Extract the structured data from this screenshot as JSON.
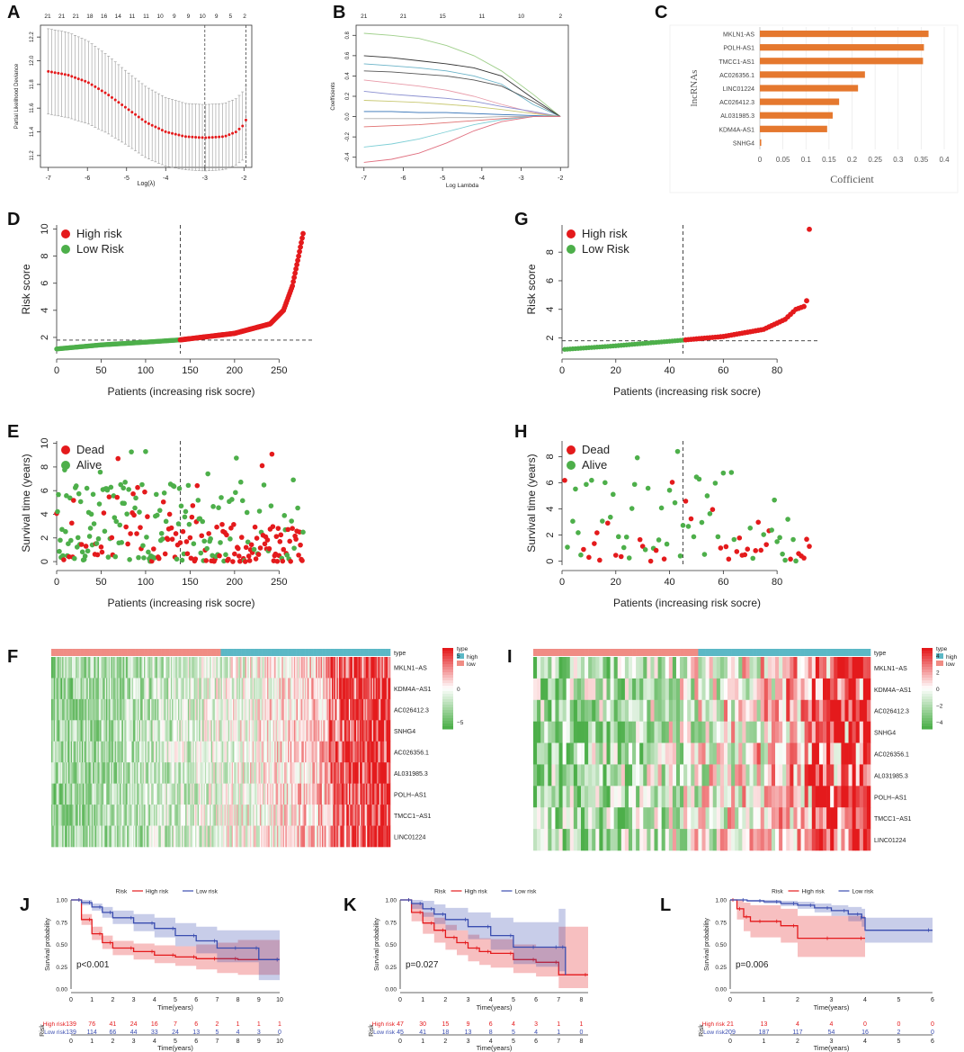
{
  "panel_letters": [
    "A",
    "B",
    "C",
    "D",
    "E",
    "F",
    "G",
    "H",
    "I",
    "J",
    "K",
    "L"
  ],
  "colors": {
    "high": "#e41a1c",
    "low": "#4daf4a",
    "dead": "#e41a1c",
    "alive": "#4daf4a",
    "km_high": "#e41a1c",
    "km_low": "#3a4db0",
    "heat_high": "#e41a1c",
    "heat_mid": "#ffffff",
    "heat_low": "#4daf4a",
    "bar": "#e5782e",
    "type_high": "#5bb8c6",
    "type_low": "#f08c84"
  },
  "chart_data": [
    {
      "panel": "A",
      "type": "line",
      "xlabel": "Log(λ)",
      "ylabel": "Partial Likelihood Deviance",
      "xlim": [
        -7.2,
        -1.8
      ],
      "ylim": [
        11.1,
        12.3
      ],
      "xticks": [
        "-7",
        "-6",
        "-5",
        "-4",
        "-3",
        "-2"
      ],
      "yticks": [
        "11.2",
        "11.4",
        "11.6",
        "11.8",
        "12.0",
        "12.2"
      ],
      "top_ticks": [
        "21",
        "21",
        "21",
        "18",
        "16",
        "14",
        "11",
        "11",
        "10",
        "9",
        "9",
        "10",
        "9",
        "5",
        "2"
      ],
      "vlines": [
        -3.0,
        -1.95
      ],
      "curve": {
        "x": [
          -7.0,
          -6.5,
          -6.0,
          -5.5,
          -5.0,
          -4.5,
          -4.0,
          -3.5,
          -3.0,
          -2.5,
          -2.2,
          -2.0,
          -1.95
        ],
        "y": [
          11.91,
          11.88,
          11.82,
          11.72,
          11.6,
          11.48,
          11.4,
          11.36,
          11.35,
          11.36,
          11.4,
          11.46,
          11.5
        ],
        "err": [
          0.36,
          0.36,
          0.35,
          0.33,
          0.31,
          0.3,
          0.29,
          0.28,
          0.28,
          0.28,
          0.28,
          0.29,
          0.29
        ]
      }
    },
    {
      "panel": "B",
      "type": "line",
      "xlabel": "Log Lambda",
      "ylabel": "Coefficients",
      "xlim": [
        -7.2,
        -1.8
      ],
      "ylim": [
        -0.5,
        0.9
      ],
      "xticks": [
        "-7",
        "-6",
        "-5",
        "-4",
        "-3",
        "-2"
      ],
      "yticks": [
        "-0.4",
        "-0.2",
        "0.0",
        "0.2",
        "0.4",
        "0.6",
        "0.8"
      ],
      "top_ticks": [
        "21",
        "21",
        "15",
        "11",
        "10",
        "2"
      ],
      "series": [
        {
          "name": "s1",
          "color": "#9fcf8a",
          "values": [
            0.82,
            0.8,
            0.77,
            0.7,
            0.6,
            0.45,
            0.22,
            0.0
          ]
        },
        {
          "name": "s2",
          "color": "#333333",
          "values": [
            0.6,
            0.58,
            0.55,
            0.52,
            0.48,
            0.4,
            0.18,
            0.0
          ]
        },
        {
          "name": "s3",
          "color": "#6bb3c8",
          "values": [
            0.52,
            0.5,
            0.48,
            0.45,
            0.4,
            0.32,
            0.12,
            0.0
          ]
        },
        {
          "name": "s4",
          "color": "#555555",
          "values": [
            0.45,
            0.44,
            0.42,
            0.4,
            0.36,
            0.3,
            0.15,
            0.0
          ]
        },
        {
          "name": "s5",
          "color": "#e89aa8",
          "values": [
            0.36,
            0.33,
            0.3,
            0.26,
            0.2,
            0.12,
            0.04,
            0.0
          ]
        },
        {
          "name": "s6",
          "color": "#8a8fd0",
          "values": [
            0.25,
            0.22,
            0.2,
            0.18,
            0.15,
            0.1,
            0.05,
            0.0
          ]
        },
        {
          "name": "s7",
          "color": "#c8c872",
          "values": [
            0.16,
            0.15,
            0.14,
            0.12,
            0.1,
            0.07,
            0.03,
            0.0
          ]
        },
        {
          "name": "s8",
          "color": "#2f6fb5",
          "values": [
            0.05,
            0.05,
            0.04,
            0.04,
            0.03,
            0.02,
            0.01,
            0.0
          ]
        },
        {
          "name": "s9",
          "color": "#aaaaaa",
          "values": [
            -0.02,
            -0.02,
            -0.02,
            -0.01,
            -0.01,
            0.0,
            0.0,
            0.0
          ]
        },
        {
          "name": "s10",
          "color": "#e07070",
          "values": [
            -0.1,
            -0.09,
            -0.08,
            -0.06,
            -0.04,
            -0.02,
            0.0,
            0.0
          ]
        },
        {
          "name": "s11",
          "color": "#7fcfd6",
          "values": [
            -0.3,
            -0.27,
            -0.22,
            -0.15,
            -0.08,
            -0.03,
            0.0,
            0.0
          ]
        },
        {
          "name": "s12",
          "color": "#e07080",
          "values": [
            -0.45,
            -0.42,
            -0.36,
            -0.26,
            -0.14,
            -0.05,
            0.0,
            0.0
          ]
        }
      ],
      "x": [
        -7.0,
        -6.3,
        -5.6,
        -4.9,
        -4.2,
        -3.5,
        -2.7,
        -2.0
      ]
    },
    {
      "panel": "C",
      "type": "bar",
      "orientation": "horizontal",
      "ylabel": "lncRNAs",
      "xlabel": "Cofficient",
      "xlim": [
        0,
        0.4
      ],
      "xticks": [
        "0",
        "0.05",
        "0.1",
        "0.15",
        "0.2",
        "0.25",
        "0.3",
        "0.35",
        "0.4"
      ],
      "categories": [
        "MKLN1-AS",
        "POLH-AS1",
        "TMCC1-AS1",
        "AC026356.1",
        "LINC01224",
        "AC026412.3",
        "AL031985.3",
        "KDM4A-AS1",
        "SNHG4"
      ],
      "values": [
        0.366,
        0.356,
        0.354,
        0.228,
        0.213,
        0.172,
        0.158,
        0.146,
        0.003
      ]
    },
    {
      "panel": "D",
      "type": "scatter",
      "xlabel": "Patients (increasing risk socre)",
      "ylabel": "Risk score",
      "n": 278,
      "cutoff_index": 139,
      "cutoff_value": 1.8,
      "xlim": [
        0,
        280
      ],
      "ylim": [
        0.8,
        10.3
      ],
      "xticks": [
        "0",
        "50",
        "100",
        "150",
        "200",
        "250"
      ],
      "yticks": [
        "2",
        "4",
        "6",
        "8",
        "10"
      ],
      "legend": [
        "High risk",
        "Low Risk"
      ],
      "curve_x": [
        0,
        50,
        100,
        139,
        200,
        240,
        255,
        265,
        272,
        278
      ],
      "curve_y": [
        1.15,
        1.45,
        1.65,
        1.82,
        2.3,
        3.0,
        4.0,
        5.8,
        8.0,
        10.0
      ]
    },
    {
      "panel": "E",
      "type": "scatter",
      "xlabel": "Patients (increasing risk socre)",
      "ylabel": "Survival time (years)",
      "n": 278,
      "cutoff_index": 139,
      "xlim": [
        0,
        280
      ],
      "ylim": [
        -0.3,
        10.2
      ],
      "xticks": [
        "0",
        "50",
        "100",
        "150",
        "200",
        "250"
      ],
      "yticks": [
        "0",
        "2",
        "4",
        "6",
        "8",
        "10"
      ],
      "legend": [
        "Dead",
        "Alive"
      ]
    },
    {
      "panel": "F",
      "type": "heatmap",
      "genes": [
        "MKLN1−AS",
        "KDM4A−AS1",
        "AC026412.3",
        "SNHG4",
        "AC026356.1",
        "AL031985.3",
        "POLH−AS1",
        "TMCC1−AS1",
        "LINC01224"
      ],
      "columns": 278,
      "split": 139,
      "legend_type_title": "type",
      "legend_type": [
        "high",
        "low"
      ],
      "colorbar_ticks": [
        "5",
        "0",
        "−5"
      ],
      "type_label": "type"
    },
    {
      "panel": "G",
      "type": "scatter",
      "xlabel": "Patients (increasing risk socre)",
      "ylabel": "Risk score",
      "n": 92,
      "cutoff_index": 45,
      "cutoff_value": 1.8,
      "xlim": [
        0,
        93
      ],
      "ylim": [
        0.9,
        9.9
      ],
      "xticks": [
        "0",
        "20",
        "40",
        "60",
        "80"
      ],
      "yticks": [
        "2",
        "4",
        "6",
        "8"
      ],
      "legend": [
        "High risk",
        "Low Risk"
      ],
      "curve_x": [
        1,
        20,
        45,
        60,
        75,
        83,
        87,
        90,
        91,
        92
      ],
      "curve_y": [
        1.2,
        1.45,
        1.85,
        2.1,
        2.6,
        3.3,
        4.0,
        4.2,
        4.6,
        9.6
      ]
    },
    {
      "panel": "H",
      "type": "scatter",
      "xlabel": "Patients (increasing risk socre)",
      "ylabel": "Survival time (years)",
      "n": 92,
      "cutoff_index": 45,
      "xlim": [
        0,
        93
      ],
      "ylim": [
        -0.3,
        9.2
      ],
      "xticks": [
        "0",
        "20",
        "40",
        "60",
        "80"
      ],
      "yticks": [
        "0",
        "2",
        "4",
        "6",
        "8"
      ],
      "legend": [
        "Dead",
        "Alive"
      ]
    },
    {
      "panel": "I",
      "type": "heatmap",
      "genes": [
        "MKLN1−AS",
        "KDM4A−AS1",
        "AC026412.3",
        "SNHG4",
        "AC026356.1",
        "AL031985.3",
        "POLH−AS1",
        "TMCC1−AS1",
        "LINC01224"
      ],
      "columns": 92,
      "split": 45,
      "legend_type_title": "type",
      "legend_type": [
        "high",
        "low"
      ],
      "colorbar_ticks": [
        "4",
        "2",
        "0",
        "−2",
        "−4"
      ],
      "type_label": "type"
    },
    {
      "panel": "J",
      "type": "line",
      "title_label": "Risk",
      "legend": [
        "High risk",
        "Low risk"
      ],
      "xlabel": "Time(years)",
      "ylabel": "Survival probability",
      "xlim": [
        0,
        10
      ],
      "ylim": [
        0,
        1
      ],
      "xticks": [
        "0",
        "1",
        "2",
        "3",
        "4",
        "5",
        "6",
        "7",
        "8",
        "9",
        "10"
      ],
      "yticks": [
        "0.00",
        "0.25",
        "0.50",
        "0.75",
        "1.00"
      ],
      "pvalue": "p<0.001",
      "series": [
        {
          "name": "High risk",
          "t": [
            0,
            0.5,
            1,
            1.5,
            2,
            3,
            4,
            5,
            6,
            7,
            8,
            10
          ],
          "s": [
            1.0,
            0.78,
            0.62,
            0.52,
            0.46,
            0.42,
            0.38,
            0.36,
            0.34,
            0.34,
            0.33,
            0.33
          ],
          "lo": [
            1.0,
            0.72,
            0.55,
            0.45,
            0.38,
            0.33,
            0.29,
            0.26,
            0.22,
            0.18,
            0.16,
            0.16
          ],
          "hi": [
            1.0,
            0.84,
            0.7,
            0.6,
            0.54,
            0.51,
            0.49,
            0.48,
            0.5,
            0.52,
            0.55,
            0.55
          ]
        },
        {
          "name": "Low risk",
          "t": [
            0,
            0.5,
            1,
            1.5,
            2,
            3,
            4,
            5,
            6,
            7,
            8,
            9,
            10
          ],
          "s": [
            1.0,
            0.97,
            0.92,
            0.86,
            0.8,
            0.74,
            0.68,
            0.6,
            0.54,
            0.46,
            0.46,
            0.33,
            0.33
          ],
          "lo": [
            1.0,
            0.94,
            0.88,
            0.8,
            0.73,
            0.65,
            0.58,
            0.48,
            0.4,
            0.3,
            0.3,
            0.1,
            0.1
          ],
          "hi": [
            1.0,
            1.0,
            0.96,
            0.92,
            0.88,
            0.84,
            0.8,
            0.74,
            0.7,
            0.66,
            0.66,
            0.66,
            0.66
          ]
        }
      ],
      "risk_table": {
        "label": "Risk",
        "rows": [
          {
            "name": "High risk",
            "values": [
              "139",
              "76",
              "41",
              "24",
              "16",
              "7",
              "6",
              "2",
              "1",
              "1",
              "1"
            ]
          },
          {
            "name": "Low risk",
            "values": [
              "139",
              "114",
              "66",
              "44",
              "33",
              "24",
              "13",
              "5",
              "4",
              "3",
              "0"
            ]
          }
        ]
      }
    },
    {
      "panel": "K",
      "type": "line",
      "title_label": "Risk",
      "legend": [
        "High risk",
        "Low risk"
      ],
      "xlabel": "Time(years)",
      "ylabel": "Survival probability",
      "xlim": [
        0,
        8.3
      ],
      "ylim": [
        0,
        1
      ],
      "xticks": [
        "0",
        "1",
        "2",
        "3",
        "4",
        "5",
        "6",
        "7",
        "8"
      ],
      "yticks": [
        "0.00",
        "0.25",
        "0.50",
        "0.75",
        "1.00"
      ],
      "pvalue": "p=0.027",
      "series": [
        {
          "name": "High risk",
          "t": [
            0,
            0.5,
            1,
            1.5,
            2,
            2.5,
            3,
            3.5,
            4,
            5,
            6,
            7,
            8.3
          ],
          "s": [
            1.0,
            0.86,
            0.74,
            0.66,
            0.58,
            0.52,
            0.46,
            0.42,
            0.4,
            0.33,
            0.3,
            0.16,
            0.16
          ],
          "lo": [
            1.0,
            0.76,
            0.62,
            0.52,
            0.44,
            0.38,
            0.31,
            0.27,
            0.24,
            0.18,
            0.14,
            0.01,
            0.01
          ],
          "hi": [
            1.0,
            0.96,
            0.86,
            0.8,
            0.72,
            0.66,
            0.61,
            0.57,
            0.56,
            0.5,
            0.47,
            0.7,
            0.7
          ]
        },
        {
          "name": "Low risk",
          "t": [
            0,
            0.5,
            1,
            1.5,
            2,
            3,
            4,
            5,
            6,
            7,
            7.3
          ],
          "s": [
            1.0,
            0.96,
            0.9,
            0.84,
            0.78,
            0.7,
            0.6,
            0.47,
            0.47,
            0.47,
            0.16
          ],
          "lo": [
            1.0,
            0.9,
            0.81,
            0.73,
            0.66,
            0.56,
            0.44,
            0.28,
            0.25,
            0.2,
            0.01
          ],
          "hi": [
            1.0,
            1.0,
            0.99,
            0.95,
            0.91,
            0.86,
            0.8,
            0.75,
            0.75,
            0.9,
            0.9
          ]
        }
      ],
      "risk_table": {
        "label": "Risk",
        "rows": [
          {
            "name": "High risk",
            "values": [
              "47",
              "30",
              "15",
              "9",
              "6",
              "4",
              "3",
              "1",
              "1"
            ]
          },
          {
            "name": "Low risk",
            "values": [
              "45",
              "41",
              "18",
              "13",
              "8",
              "5",
              "4",
              "1",
              "0"
            ]
          }
        ]
      }
    },
    {
      "panel": "L",
      "type": "line",
      "title_label": "Risk",
      "legend": [
        "High risk",
        "Low risk"
      ],
      "xlabel": "Time(years)",
      "ylabel": "Survival probability",
      "xlim": [
        0,
        6
      ],
      "ylim": [
        0,
        1
      ],
      "xticks": [
        "0",
        "1",
        "2",
        "3",
        "4",
        "5",
        "6"
      ],
      "yticks": [
        "0.00",
        "0.25",
        "0.50",
        "0.75",
        "1.00"
      ],
      "pvalue": "p=0.006",
      "series": [
        {
          "name": "High risk",
          "t": [
            0,
            0.2,
            0.4,
            0.6,
            1,
            1.5,
            2,
            3,
            4
          ],
          "s": [
            1.0,
            0.9,
            0.81,
            0.76,
            0.76,
            0.71,
            0.57,
            0.57,
            0.57
          ],
          "lo": [
            1.0,
            0.78,
            0.65,
            0.58,
            0.58,
            0.52,
            0.36,
            0.36,
            0.36
          ],
          "hi": [
            1.0,
            1.0,
            0.97,
            0.94,
            0.94,
            0.9,
            0.82,
            0.82,
            0.82
          ]
        },
        {
          "name": "Low risk",
          "t": [
            0,
            0.5,
            1,
            1.5,
            2,
            2.5,
            3,
            3.5,
            3.9,
            4,
            6
          ],
          "s": [
            1.0,
            0.99,
            0.98,
            0.96,
            0.94,
            0.91,
            0.88,
            0.84,
            0.8,
            0.66,
            0.66
          ],
          "lo": [
            1.0,
            0.98,
            0.96,
            0.93,
            0.9,
            0.86,
            0.82,
            0.76,
            0.7,
            0.52,
            0.52
          ],
          "hi": [
            1.0,
            1.0,
            1.0,
            0.99,
            0.98,
            0.96,
            0.94,
            0.92,
            0.9,
            0.8,
            0.8
          ]
        }
      ],
      "risk_table": {
        "label": "Risk",
        "rows": [
          {
            "name": "High risk",
            "values": [
              "21",
              "13",
              "4",
              "4",
              "0",
              "0",
              "0"
            ]
          },
          {
            "name": "Low risk",
            "values": [
              "209",
              "187",
              "117",
              "54",
              "16",
              "2",
              "0"
            ]
          }
        ]
      }
    }
  ]
}
